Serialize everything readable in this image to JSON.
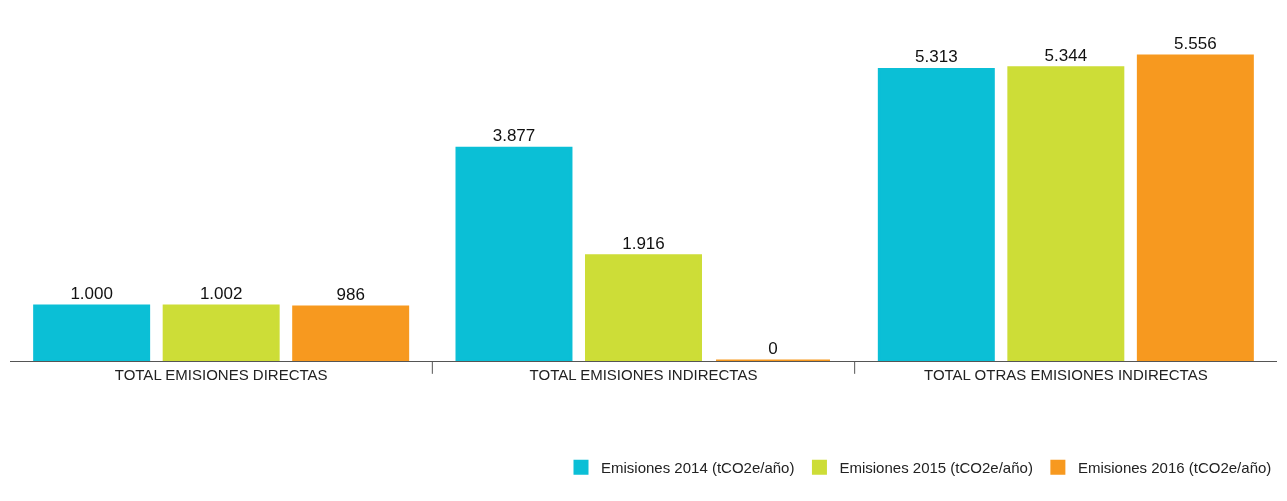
{
  "chart_data": {
    "type": "bar",
    "categories": [
      "TOTAL EMISIONES DIRECTAS",
      "TOTAL EMISIONES INDIRECTAS",
      "TOTAL OTRAS EMISIONES INDIRECTAS"
    ],
    "series": [
      {
        "name": "Emisiones 2014 (tCO2e/año)",
        "color": "#0bbfd6",
        "values": [
          1000,
          3877,
          5313
        ],
        "value_labels": [
          "1.000",
          "3.877",
          "5.313"
        ]
      },
      {
        "name": "Emisiones 2015 (tCO2e/año)",
        "color": "#cddd37",
        "values": [
          1002,
          1916,
          5344
        ],
        "value_labels": [
          "1.002",
          "1.916",
          "5.344"
        ]
      },
      {
        "name": "Emisiones 2016 (tCO2e/año)",
        "color": "#f7991f",
        "values": [
          986,
          0,
          5556
        ],
        "value_labels": [
          "986",
          "0",
          "5.556"
        ]
      }
    ],
    "legend": "bottom right"
  }
}
